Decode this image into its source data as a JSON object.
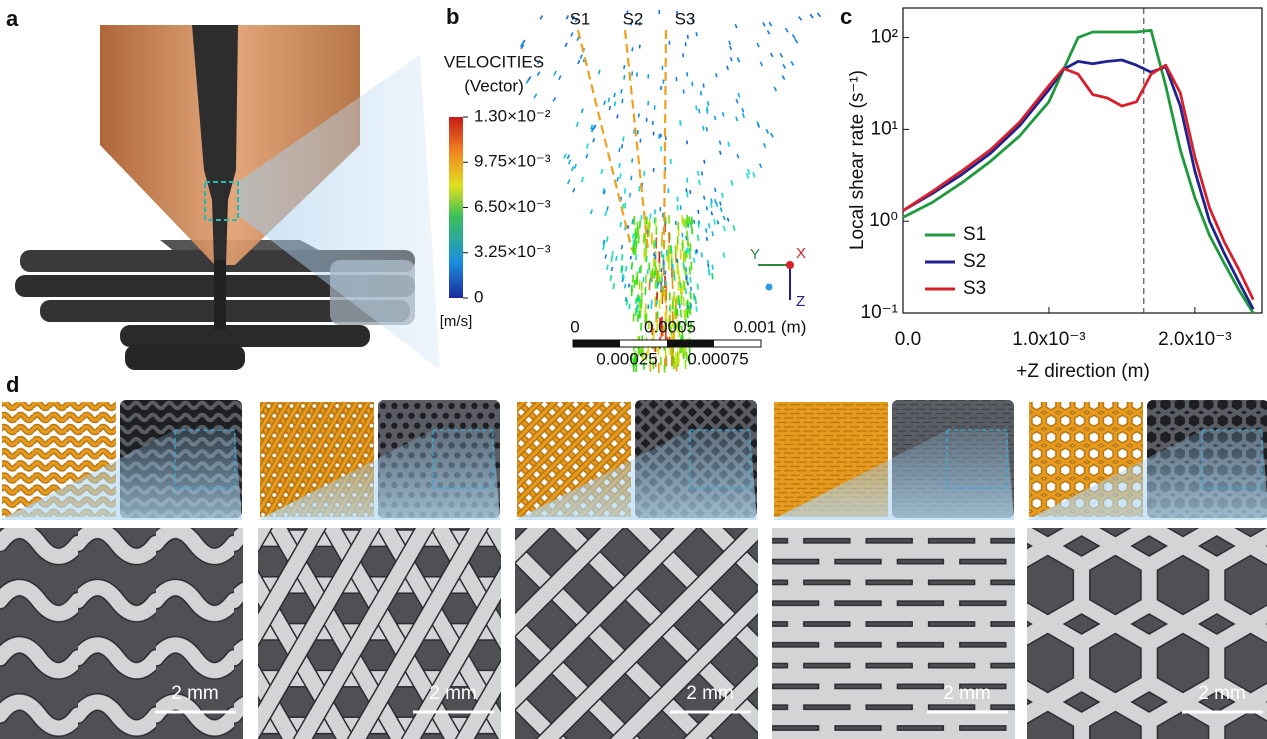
{
  "panel_labels": [
    "a",
    "b",
    "c",
    "d"
  ],
  "panel_b": {
    "streamlines": [
      "S1",
      "S2",
      "S3"
    ],
    "colorbar": {
      "title": "VELOCITIES",
      "subtitle": "(Vector)",
      "unit": "[m/s]",
      "lim": [
        0,
        0.013
      ],
      "ticks": [
        {
          "value": 0.013,
          "label": "1.30×10⁻²"
        },
        {
          "value": 0.00975,
          "label": "9.75×10⁻³"
        },
        {
          "value": 0.0065,
          "label": "6.50×10⁻³"
        },
        {
          "value": 0.00325,
          "label": "3.25×10⁻³"
        },
        0
      ]
    },
    "axes_triad": {
      "x": "X",
      "y": "Y",
      "z": "Z"
    },
    "scale_bar": {
      "top_labels": [
        "0",
        "0.0005",
        "0.001 (m)"
      ],
      "bottom_labels": [
        "0.00025",
        "0.00075"
      ]
    }
  },
  "chart_data": {
    "type": "line",
    "xlabel": "+Z direction (m)",
    "ylabel": "Local shear rate (s⁻¹)",
    "log_y": true,
    "legend": "lower left",
    "grid": false,
    "xlim": [
      0,
      0.00246
    ],
    "ylim": [
      0.1,
      210
    ],
    "xticks": [
      {
        "value": 0,
        "label": "0.0"
      },
      {
        "value": 0.001,
        "label": "1.0x10⁻³"
      },
      {
        "value": 0.002,
        "label": "2.0x10⁻³"
      }
    ],
    "yticks": [
      {
        "value": 0.1,
        "label": "10⁻¹"
      },
      {
        "value": 1,
        "label": "10⁰"
      },
      {
        "value": 10,
        "label": "10¹"
      },
      {
        "value": 100,
        "label": "10²"
      }
    ],
    "vline": 0.00165,
    "x": [
      0,
      0.0002,
      0.0004,
      0.0006,
      0.0008,
      0.001,
      0.0011,
      0.0012,
      0.0013,
      0.0014,
      0.0015,
      0.0016,
      0.0017,
      0.0018,
      0.0019,
      0.002,
      0.0021,
      0.0022,
      0.0023,
      0.0024
    ],
    "series": [
      {
        "name": "S1",
        "color": "#1e9a3c",
        "values": [
          1.1,
          1.6,
          2.6,
          4.5,
          8.5,
          20,
          45,
          100,
          115,
          115,
          115,
          115,
          120,
          30,
          6,
          1.8,
          0.7,
          0.35,
          0.18,
          0.1
        ]
      },
      {
        "name": "S2",
        "color": "#1f2390",
        "values": [
          1.3,
          2,
          3.2,
          5.5,
          11,
          27,
          45,
          55,
          52,
          55,
          57,
          50,
          42,
          48,
          18,
          3.5,
          1,
          0.45,
          0.22,
          0.11
        ]
      },
      {
        "name": "S3",
        "color": "#d8202c",
        "values": [
          1.3,
          2.1,
          3.5,
          6,
          12,
          30,
          46,
          40,
          24,
          22,
          18,
          20,
          40,
          50,
          25,
          5,
          1.4,
          0.6,
          0.3,
          0.14
        ]
      }
    ]
  },
  "panel_d": {
    "scale_bars": [
      "2 mm",
      "2 mm",
      "2 mm",
      "2 mm",
      "2 mm"
    ]
  }
}
